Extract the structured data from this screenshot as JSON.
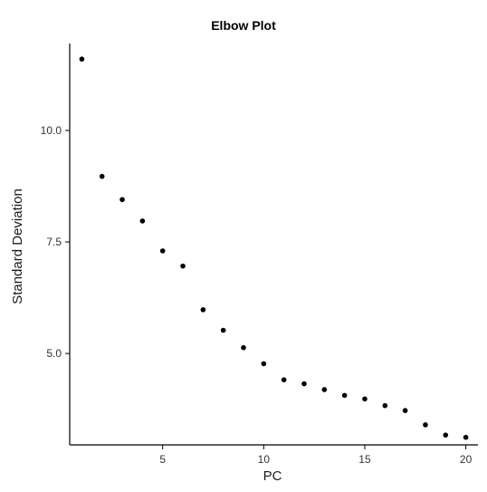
{
  "chart_data": {
    "type": "scatter",
    "title": "Elbow Plot",
    "xlabel": "PC",
    "ylabel": "Standard Deviation",
    "xlim": [
      0.4,
      20.6
    ],
    "ylim": [
      2.95,
      11.95
    ],
    "xticks": [
      5,
      10,
      15,
      20
    ],
    "yticks": [
      5.0,
      7.5,
      10.0
    ],
    "xtick_labels": [
      "5",
      "10",
      "15",
      "20"
    ],
    "ytick_labels": [
      "5.0",
      "7.5",
      "10.0"
    ],
    "grid": false,
    "legend": "none",
    "point_color": "#000000",
    "series": [
      {
        "x": [
          1,
          2,
          3,
          4,
          5,
          6,
          7,
          8,
          9,
          10,
          11,
          12,
          13,
          14,
          15,
          16,
          17,
          18,
          19,
          20
        ],
        "y": [
          11.6,
          8.97,
          8.45,
          7.97,
          7.3,
          6.96,
          5.98,
          5.52,
          5.13,
          4.77,
          4.41,
          4.32,
          4.19,
          4.06,
          3.98,
          3.83,
          3.72,
          3.4,
          3.17,
          3.12
        ]
      }
    ]
  }
}
